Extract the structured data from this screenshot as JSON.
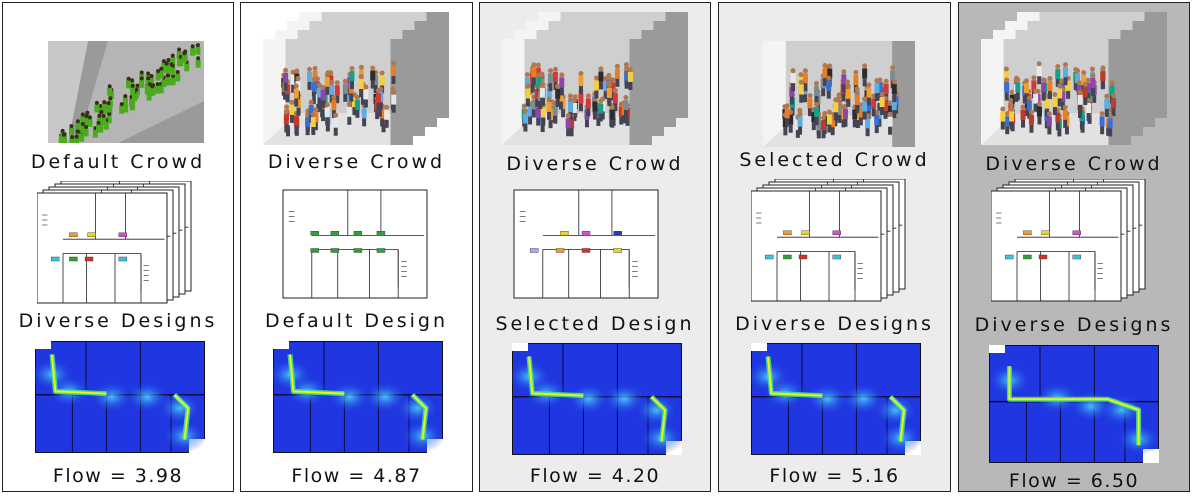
{
  "panels": [
    {
      "crowd": "Default Crowd",
      "design": "Diverse Designs",
      "flow": "Flow = 3.98",
      "background": "#ffffff"
    },
    {
      "crowd": "Diverse Crowd",
      "design": "Default Design",
      "flow": "Flow = 4.87",
      "background": "#ffffff"
    },
    {
      "crowd": "Diverse Crowd",
      "design": "Selected Design",
      "flow": "Flow = 4.20",
      "background": "#ececec"
    },
    {
      "crowd": "Selected Crowd",
      "design": "Diverse Designs",
      "flow": "Flow = 5.16",
      "background": "#ececec"
    },
    {
      "crowd": "Diverse Crowd",
      "design": "Diverse Designs",
      "flow": "Flow = 6.50",
      "background": "#b8b8b8"
    }
  ],
  "colors": {
    "heatmap_background": "#1f36e0",
    "heatmap_hot": "#f2f20a",
    "crowd_green": "#4caa1e",
    "exit_colors": [
      "#f39c2a",
      "#ecd424",
      "#d948d6",
      "#2638b8",
      "#a9a6f2",
      "#3cc3e0",
      "#2fa13a",
      "#d8312c"
    ]
  }
}
